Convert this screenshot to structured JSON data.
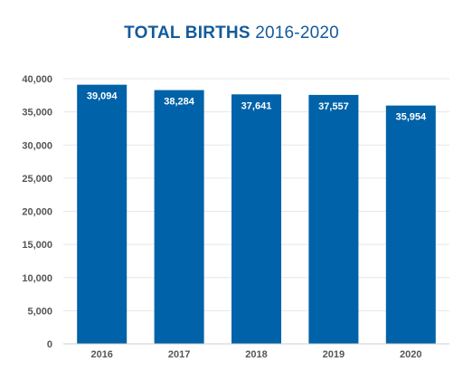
{
  "title": {
    "bold": "TOTAL BIRTHS",
    "regular": "2016-2020"
  },
  "colors": {
    "bar": "#0062a8",
    "title": "#155a9a",
    "grid": "#e6e6e6",
    "axis_text": "#555555"
  },
  "chart_data": {
    "type": "bar",
    "title": "TOTAL BIRTHS 2016-2020",
    "categories": [
      "2016",
      "2017",
      "2018",
      "2019",
      "2020"
    ],
    "values": [
      39094,
      38284,
      37641,
      37557,
      35954
    ],
    "data_labels": [
      "39,094",
      "38,284",
      "37,641",
      "37,557",
      "35,954"
    ],
    "yticks": [
      0,
      5000,
      10000,
      15000,
      20000,
      25000,
      30000,
      35000,
      40000
    ],
    "ytick_labels": [
      "0",
      "5,000",
      "10,000",
      "15,000",
      "20,000",
      "25,000",
      "30,000",
      "35,000",
      "40,000"
    ],
    "ylim": [
      0,
      40000
    ],
    "xlabel": "",
    "ylabel": "",
    "grid": true,
    "legend": "none"
  }
}
